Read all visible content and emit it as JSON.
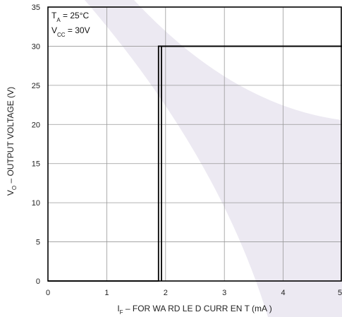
{
  "chart_data": {
    "type": "line",
    "xlabel": {
      "symbol": "I",
      "subscript": "F",
      "text": " – FOR WA RD LE D CURR EN T (mA )"
    },
    "ylabel": {
      "symbol": "V",
      "subscript": "O",
      "text": " – OUTPUT VOLTAGE (V)"
    },
    "xlim": [
      0,
      5
    ],
    "ylim": [
      0,
      35
    ],
    "x_ticks": [
      "0",
      "1",
      "2",
      "3",
      "4",
      "5"
    ],
    "y_ticks": [
      "0",
      "5",
      "10",
      "15",
      "20",
      "25",
      "30",
      "35"
    ],
    "grid": true,
    "conditions": [
      {
        "symbol": "T",
        "subscript": "A",
        "value": " = 25°C"
      },
      {
        "symbol": "V",
        "subscript": "CC",
        "value": " = 30V"
      }
    ],
    "series": [
      {
        "x": [
          0,
          1.88,
          1.88,
          5
        ],
        "y": [
          0,
          0,
          30,
          30
        ]
      },
      {
        "x": [
          1.93,
          1.93,
          5
        ],
        "y": [
          0,
          30,
          30
        ]
      }
    ],
    "colors": {
      "line": "#000000",
      "grid": "#999999",
      "watermark": "#ece9f2"
    }
  }
}
